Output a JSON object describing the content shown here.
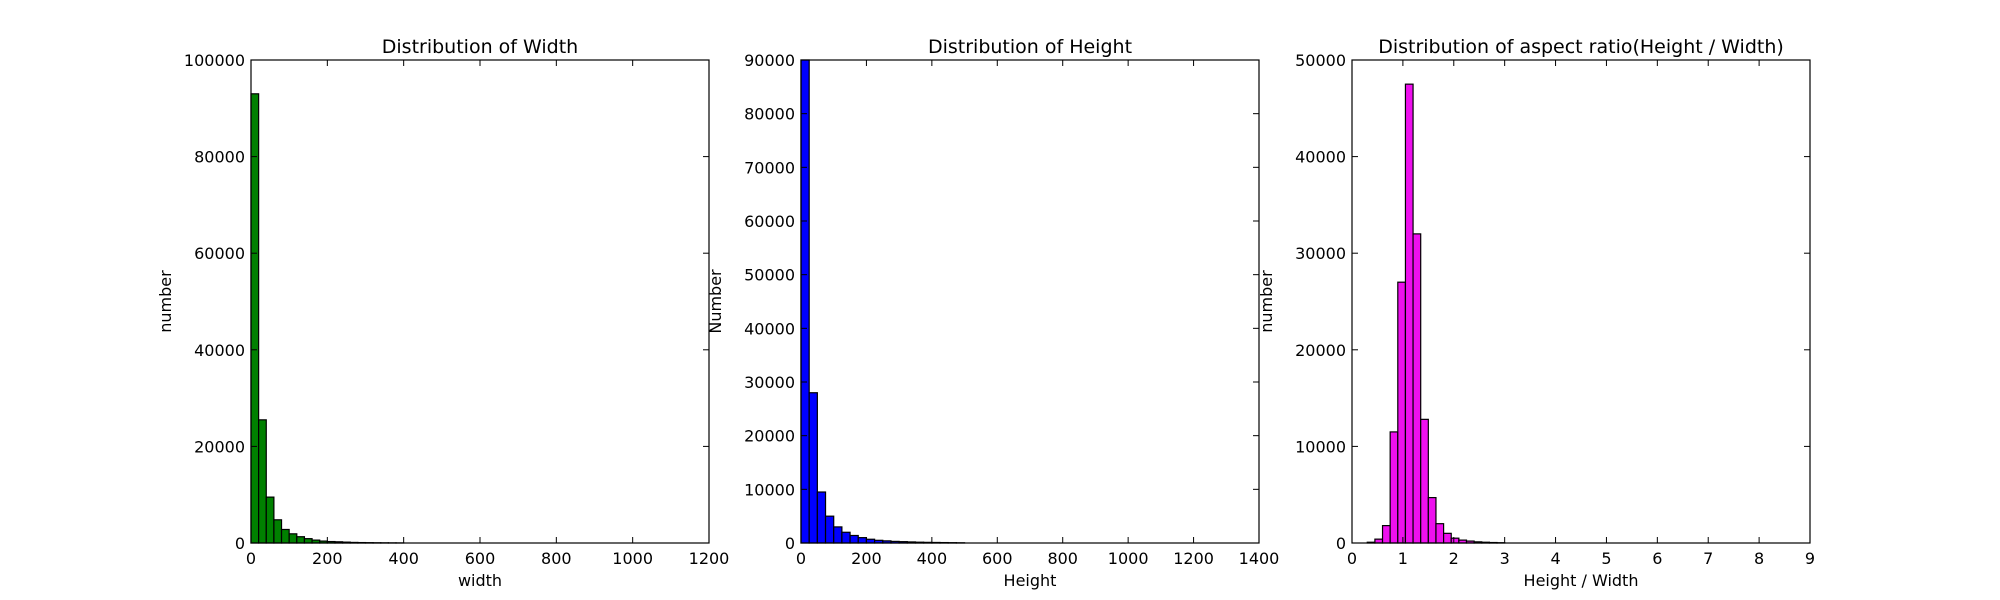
{
  "chart_data": [
    {
      "type": "bar",
      "title": "Distribution of Width",
      "xlabel": "width",
      "ylabel": "number",
      "xlim": [
        0,
        1200
      ],
      "ylim": [
        0,
        100000
      ],
      "xticks": [
        "0",
        "200",
        "400",
        "600",
        "800",
        "1000",
        "1200"
      ],
      "yticks": [
        "0",
        "20000",
        "40000",
        "60000",
        "80000",
        "100000"
      ],
      "color": "#008000",
      "bin_width": 20,
      "bins": [
        {
          "x": 10,
          "value": 93000
        },
        {
          "x": 30,
          "value": 25500
        },
        {
          "x": 50,
          "value": 9500
        },
        {
          "x": 70,
          "value": 4800
        },
        {
          "x": 90,
          "value": 2800
        },
        {
          "x": 110,
          "value": 1900
        },
        {
          "x": 130,
          "value": 1300
        },
        {
          "x": 150,
          "value": 900
        },
        {
          "x": 170,
          "value": 600
        },
        {
          "x": 190,
          "value": 400
        },
        {
          "x": 210,
          "value": 300
        },
        {
          "x": 230,
          "value": 250
        },
        {
          "x": 250,
          "value": 180
        },
        {
          "x": 270,
          "value": 120
        },
        {
          "x": 290,
          "value": 90
        },
        {
          "x": 310,
          "value": 70
        },
        {
          "x": 330,
          "value": 50
        },
        {
          "x": 350,
          "value": 40
        },
        {
          "x": 370,
          "value": 30
        },
        {
          "x": 390,
          "value": 20
        }
      ]
    },
    {
      "type": "bar",
      "title": "Distribution of Height",
      "xlabel": "Height",
      "ylabel": "Number",
      "xlim": [
        0,
        1400
      ],
      "ylim": [
        0,
        90000
      ],
      "xticks": [
        "0",
        "200",
        "400",
        "600",
        "800",
        "1000",
        "1200",
        "1400"
      ],
      "yticks": [
        "0",
        "10000",
        "20000",
        "30000",
        "40000",
        "50000",
        "60000",
        "70000",
        "80000",
        "90000"
      ],
      "color": "#0000ff",
      "bin_width": 25,
      "bins": [
        {
          "x": 12.5,
          "value": 90000
        },
        {
          "x": 37.5,
          "value": 28000
        },
        {
          "x": 62.5,
          "value": 9500
        },
        {
          "x": 87.5,
          "value": 5000
        },
        {
          "x": 112.5,
          "value": 3000
        },
        {
          "x": 137.5,
          "value": 2000
        },
        {
          "x": 162.5,
          "value": 1400
        },
        {
          "x": 187.5,
          "value": 1000
        },
        {
          "x": 212.5,
          "value": 700
        },
        {
          "x": 237.5,
          "value": 500
        },
        {
          "x": 262.5,
          "value": 400
        },
        {
          "x": 287.5,
          "value": 300
        },
        {
          "x": 312.5,
          "value": 250
        },
        {
          "x": 337.5,
          "value": 200
        },
        {
          "x": 362.5,
          "value": 150
        },
        {
          "x": 387.5,
          "value": 120
        },
        {
          "x": 412.5,
          "value": 100
        },
        {
          "x": 437.5,
          "value": 80
        },
        {
          "x": 462.5,
          "value": 60
        },
        {
          "x": 487.5,
          "value": 40
        }
      ]
    },
    {
      "type": "bar",
      "title": "Distribution of aspect ratio(Height / Width)",
      "xlabel": "Height / Width",
      "ylabel": "number",
      "xlim": [
        0,
        9
      ],
      "ylim": [
        0,
        50000
      ],
      "xticks": [
        "0",
        "1",
        "2",
        "3",
        "4",
        "5",
        "6",
        "7",
        "8",
        "9"
      ],
      "yticks": [
        "0",
        "10000",
        "20000",
        "30000",
        "40000",
        "50000"
      ],
      "color": "#ee10ee",
      "bin_width": 0.15,
      "bins": [
        {
          "x": 0.375,
          "value": 80
        },
        {
          "x": 0.525,
          "value": 400
        },
        {
          "x": 0.675,
          "value": 1800
        },
        {
          "x": 0.825,
          "value": 11500
        },
        {
          "x": 0.975,
          "value": 27000
        },
        {
          "x": 1.125,
          "value": 47500
        },
        {
          "x": 1.275,
          "value": 32000
        },
        {
          "x": 1.425,
          "value": 12800
        },
        {
          "x": 1.575,
          "value": 4700
        },
        {
          "x": 1.725,
          "value": 2000
        },
        {
          "x": 1.875,
          "value": 1000
        },
        {
          "x": 2.025,
          "value": 500
        },
        {
          "x": 2.175,
          "value": 300
        },
        {
          "x": 2.325,
          "value": 200
        },
        {
          "x": 2.475,
          "value": 120
        },
        {
          "x": 2.625,
          "value": 80
        },
        {
          "x": 2.775,
          "value": 50
        },
        {
          "x": 2.925,
          "value": 30
        }
      ]
    }
  ]
}
